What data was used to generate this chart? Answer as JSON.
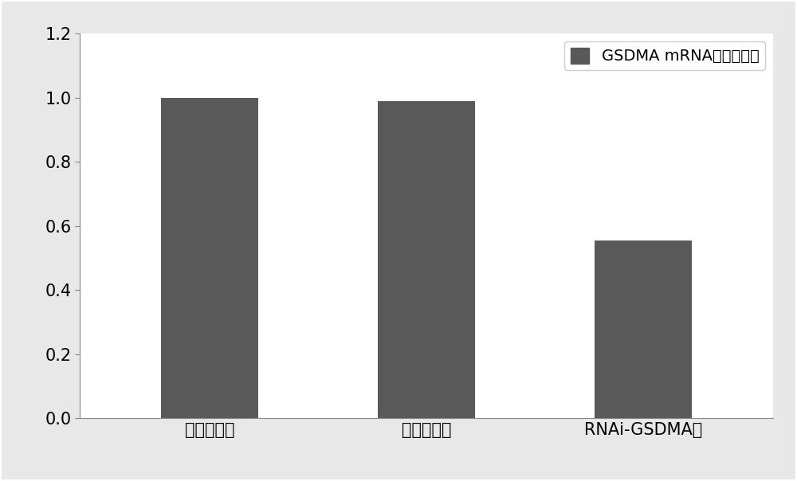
{
  "categories": [
    "空白对照组",
    "阴性对照组",
    "RNAi-GSDMA组"
  ],
  "values": [
    1.0,
    0.99,
    0.555
  ],
  "bar_color": "#595959",
  "bar_width": 0.45,
  "ylim": [
    0,
    1.2
  ],
  "yticks": [
    0,
    0.2,
    0.4,
    0.6,
    0.8,
    1.0,
    1.2
  ],
  "legend_label": "GSDMA mRNA相对表达量",
  "figure_facecolor": "#e8e8e8",
  "axes_facecolor": "#ffffff",
  "outer_border_color": "#aaaaaa",
  "tick_fontsize": 15,
  "legend_fontsize": 14,
  "xticklabel_fontsize": 15,
  "spine_color": "#888888"
}
